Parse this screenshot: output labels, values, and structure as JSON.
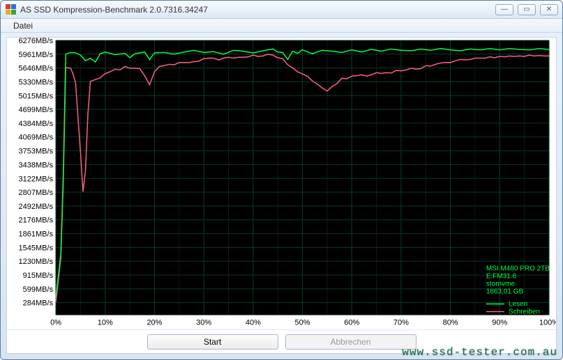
{
  "window": {
    "title": "AS SSD Kompression-Benchmark 2.0.7316.34247",
    "icon_colors": [
      "#d04030",
      "#3070d0",
      "#e0b020",
      "#40a040"
    ]
  },
  "menu": {
    "file_label": "Datei"
  },
  "chart": {
    "type": "line",
    "background_color": "#000000",
    "grid_color": "#003d2a",
    "grid_minor_color": "#002018",
    "label_fontsize": 11,
    "y_unit": "MB/s",
    "y_ticks": [
      284,
      599,
      915,
      1230,
      1545,
      1861,
      2176,
      2492,
      2807,
      3122,
      3438,
      3753,
      4069,
      4384,
      4699,
      5015,
      5330,
      5646,
      5961,
      6276
    ],
    "y_min": 0,
    "y_max": 6276,
    "x_ticks_pct": [
      0,
      10,
      20,
      30,
      40,
      50,
      60,
      70,
      80,
      90,
      100
    ],
    "x_min": 0,
    "x_max": 100,
    "series": {
      "read": {
        "label": "Lesen",
        "color": "#00ff40",
        "points": [
          [
            0,
            400
          ],
          [
            1,
            1400
          ],
          [
            1.5,
            3200
          ],
          [
            2,
            5960
          ],
          [
            3,
            6000
          ],
          [
            4,
            5990
          ],
          [
            5,
            5940
          ],
          [
            6,
            5810
          ],
          [
            7,
            5870
          ],
          [
            8,
            5780
          ],
          [
            9,
            5970
          ],
          [
            10,
            6010
          ],
          [
            12,
            5950
          ],
          [
            14,
            5980
          ],
          [
            15,
            5880
          ],
          [
            16,
            5970
          ],
          [
            18,
            6010
          ],
          [
            19,
            5840
          ],
          [
            20,
            5990
          ],
          [
            22,
            6000
          ],
          [
            24,
            5960
          ],
          [
            26,
            6010
          ],
          [
            28,
            6050
          ],
          [
            30,
            6000
          ],
          [
            32,
            6020
          ],
          [
            34,
            5960
          ],
          [
            36,
            6050
          ],
          [
            38,
            6030
          ],
          [
            40,
            5990
          ],
          [
            42,
            6040
          ],
          [
            44,
            6080
          ],
          [
            45,
            6010
          ],
          [
            46,
            6000
          ],
          [
            47,
            5840
          ],
          [
            48,
            6030
          ],
          [
            49,
            5980
          ],
          [
            50,
            6060
          ],
          [
            52,
            5970
          ],
          [
            54,
            6050
          ],
          [
            56,
            6030
          ],
          [
            58,
            6000
          ],
          [
            60,
            6060
          ],
          [
            62,
            6010
          ],
          [
            64,
            6070
          ],
          [
            66,
            6030
          ],
          [
            68,
            6080
          ],
          [
            70,
            6050
          ],
          [
            72,
            6040
          ],
          [
            74,
            6080
          ],
          [
            76,
            6050
          ],
          [
            78,
            6090
          ],
          [
            80,
            6060
          ],
          [
            82,
            6040
          ],
          [
            84,
            6080
          ],
          [
            86,
            6060
          ],
          [
            88,
            6090
          ],
          [
            90,
            6060
          ],
          [
            92,
            6090
          ],
          [
            94,
            6070
          ],
          [
            96,
            6060
          ],
          [
            98,
            6090
          ],
          [
            100,
            6070
          ]
        ]
      },
      "write": {
        "label": "Schreiben",
        "color": "#ff6080",
        "points": [
          [
            0,
            300
          ],
          [
            1,
            1300
          ],
          [
            1.5,
            3000
          ],
          [
            2,
            5660
          ],
          [
            3,
            5640
          ],
          [
            3.5,
            5500
          ],
          [
            4,
            5300
          ],
          [
            4.5,
            4500
          ],
          [
            5,
            3700
          ],
          [
            5.5,
            2820
          ],
          [
            6,
            3300
          ],
          [
            6.5,
            4600
          ],
          [
            7,
            5340
          ],
          [
            8,
            5380
          ],
          [
            9,
            5420
          ],
          [
            10,
            5520
          ],
          [
            11,
            5560
          ],
          [
            12,
            5620
          ],
          [
            13,
            5600
          ],
          [
            14,
            5680
          ],
          [
            15,
            5640
          ],
          [
            16,
            5640
          ],
          [
            17,
            5630
          ],
          [
            18,
            5470
          ],
          [
            19,
            5260
          ],
          [
            20,
            5560
          ],
          [
            21,
            5680
          ],
          [
            22,
            5700
          ],
          [
            23,
            5730
          ],
          [
            24,
            5720
          ],
          [
            25,
            5770
          ],
          [
            26,
            5770
          ],
          [
            27,
            5770
          ],
          [
            28,
            5790
          ],
          [
            29,
            5800
          ],
          [
            30,
            5860
          ],
          [
            31,
            5870
          ],
          [
            32,
            5870
          ],
          [
            33,
            5830
          ],
          [
            34,
            5870
          ],
          [
            35,
            5890
          ],
          [
            36,
            5870
          ],
          [
            37,
            5890
          ],
          [
            38,
            5890
          ],
          [
            39,
            5900
          ],
          [
            40,
            5940
          ],
          [
            41,
            5910
          ],
          [
            42,
            5920
          ],
          [
            43,
            5960
          ],
          [
            44,
            5940
          ],
          [
            45,
            5880
          ],
          [
            46,
            5860
          ],
          [
            47,
            5720
          ],
          [
            48,
            5650
          ],
          [
            49,
            5560
          ],
          [
            50,
            5510
          ],
          [
            51,
            5460
          ],
          [
            52,
            5350
          ],
          [
            53,
            5280
          ],
          [
            54,
            5190
          ],
          [
            55,
            5120
          ],
          [
            56,
            5220
          ],
          [
            57,
            5290
          ],
          [
            58,
            5410
          ],
          [
            59,
            5400
          ],
          [
            60,
            5460
          ],
          [
            61,
            5470
          ],
          [
            62,
            5490
          ],
          [
            63,
            5460
          ],
          [
            64,
            5490
          ],
          [
            65,
            5540
          ],
          [
            66,
            5520
          ],
          [
            67,
            5540
          ],
          [
            68,
            5530
          ],
          [
            69,
            5590
          ],
          [
            70,
            5580
          ],
          [
            71,
            5600
          ],
          [
            72,
            5640
          ],
          [
            73,
            5620
          ],
          [
            74,
            5630
          ],
          [
            75,
            5700
          ],
          [
            76,
            5690
          ],
          [
            77,
            5730
          ],
          [
            78,
            5760
          ],
          [
            79,
            5770
          ],
          [
            80,
            5770
          ],
          [
            81,
            5810
          ],
          [
            82,
            5840
          ],
          [
            83,
            5830
          ],
          [
            84,
            5840
          ],
          [
            85,
            5870
          ],
          [
            86,
            5870
          ],
          [
            87,
            5870
          ],
          [
            88,
            5900
          ],
          [
            89,
            5880
          ],
          [
            90,
            5910
          ],
          [
            91,
            5900
          ],
          [
            92,
            5920
          ],
          [
            93,
            5910
          ],
          [
            94,
            5920
          ],
          [
            95,
            5910
          ],
          [
            96,
            5940
          ],
          [
            97,
            5920
          ],
          [
            98,
            5930
          ],
          [
            99,
            5920
          ],
          [
            100,
            5920
          ]
        ]
      }
    },
    "info_box": {
      "lines": [
        "MSI M480 PRO 2TB",
        "E:FM31.6",
        "stornvme",
        "1863,01 GB"
      ],
      "text_color": "#00ff40"
    }
  },
  "buttons": {
    "start_label": "Start",
    "abort_label": "Abbrechen"
  },
  "watermark": "www.ssd-tester.com.au"
}
